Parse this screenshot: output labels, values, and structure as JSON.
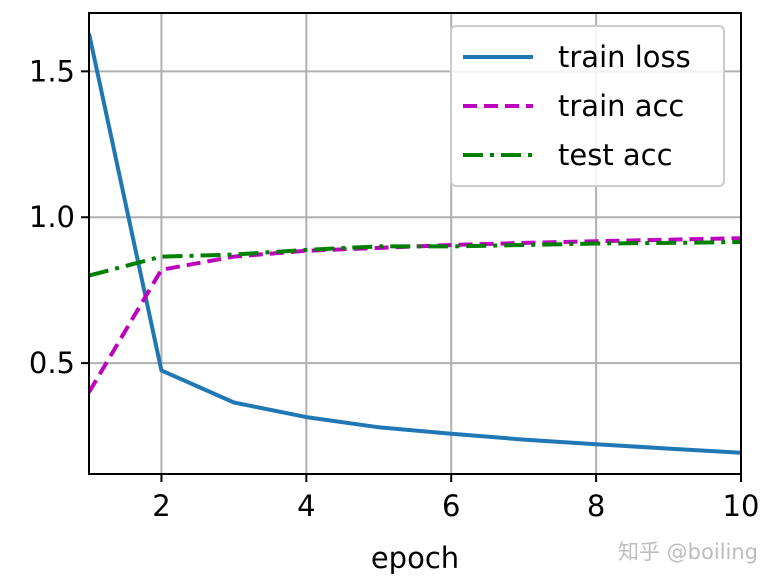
{
  "chart_data": {
    "type": "line",
    "title": "",
    "xlabel": "epoch",
    "ylabel": "",
    "xlim": [
      1,
      10
    ],
    "ylim": [
      0.12,
      1.7
    ],
    "xticks": [
      2,
      4,
      6,
      8,
      10
    ],
    "yticks": [
      0.5,
      1.0,
      1.5
    ],
    "xtick_labels": [
      "2",
      "4",
      "6",
      "8",
      "10"
    ],
    "ytick_labels": [
      "0.5",
      "1.0",
      "1.5"
    ],
    "grid": true,
    "legend_position": "top-right",
    "x": [
      1,
      2,
      3,
      4,
      5,
      6,
      7,
      8,
      9,
      10
    ],
    "series": [
      {
        "name": "train loss",
        "style": "solid",
        "color": "#1f77b4",
        "values": [
          1.63,
          0.475,
          0.365,
          0.315,
          0.28,
          0.258,
          0.238,
          0.222,
          0.207,
          0.193
        ]
      },
      {
        "name": "train acc",
        "style": "dashed",
        "color": "#bf00bf",
        "values": [
          0.4,
          0.82,
          0.865,
          0.885,
          0.895,
          0.905,
          0.912,
          0.918,
          0.923,
          0.928
        ]
      },
      {
        "name": "test acc",
        "style": "dashdot",
        "color": "#008000",
        "values": [
          0.8,
          0.865,
          0.872,
          0.888,
          0.9,
          0.9,
          0.905,
          0.91,
          0.912,
          0.915
        ]
      }
    ]
  },
  "watermark": "知乎 @boiling"
}
